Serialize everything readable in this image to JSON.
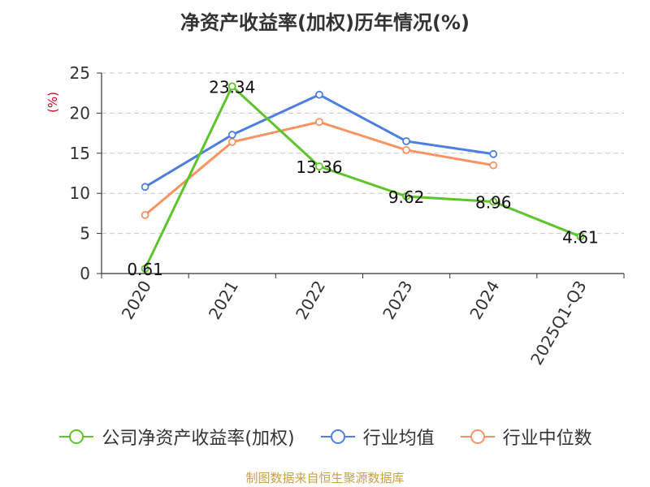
{
  "chart_data": {
    "type": "line",
    "title": "净资产收益率(加权)历年情况(%)",
    "ylabel": "(%)",
    "xlabel": "",
    "categories": [
      "2020",
      "2021",
      "2022",
      "2023",
      "2024",
      "2025Q1-Q3"
    ],
    "ylim": [
      0,
      25
    ],
    "yticks": [
      0,
      5,
      10,
      15,
      20,
      25
    ],
    "grid": true,
    "legend_position": "bottom",
    "series": [
      {
        "name": "公司净资产收益率(加权)",
        "color": "#5ec42b",
        "values": [
          0.61,
          23.34,
          13.36,
          9.62,
          8.96,
          4.61
        ],
        "labeled": true
      },
      {
        "name": "行业均值",
        "color": "#4e7fe0",
        "values": [
          10.8,
          17.3,
          22.3,
          16.5,
          14.9,
          null
        ],
        "labeled": false
      },
      {
        "name": "行业中位数",
        "color": "#f79463",
        "values": [
          7.3,
          16.4,
          18.9,
          15.4,
          13.5,
          null
        ],
        "labeled": false
      }
    ],
    "data_labels": [
      "0.61",
      "23.34",
      "13.36",
      "9.62",
      "8.96",
      "4.61"
    ]
  },
  "source": "制图数据来自恒生聚源数据库"
}
